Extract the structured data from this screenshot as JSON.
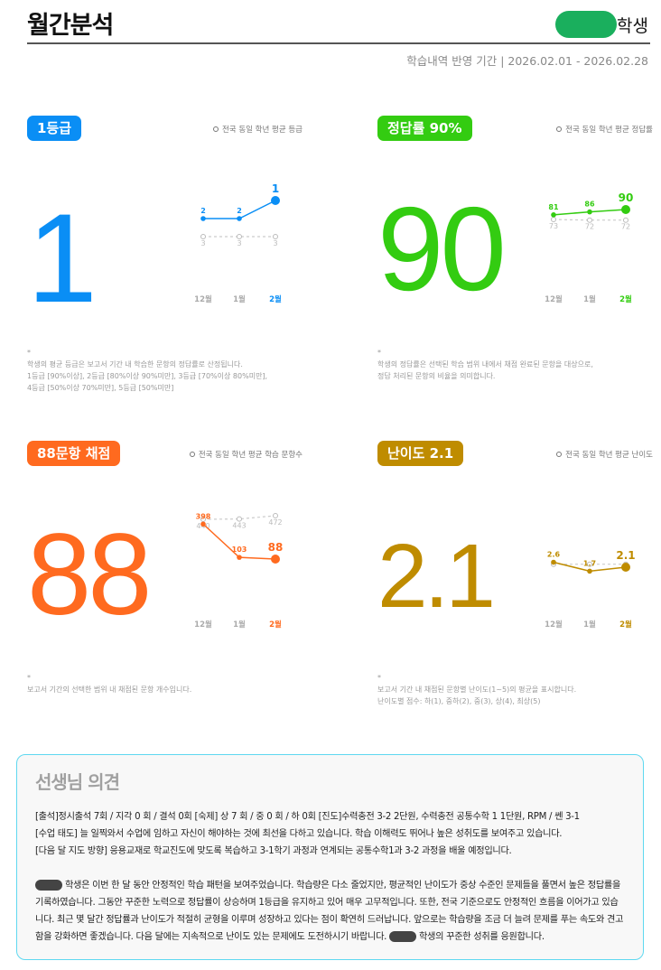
{
  "header": {
    "title": "월간분석",
    "student_suffix": "학생",
    "period_label": "학습내역 반영 기간  |  2026.02.01 - 2026.02.28"
  },
  "months": [
    "12월",
    "1월",
    "2월"
  ],
  "cards": [
    {
      "badge": "1등급",
      "color": "#0a8ef5",
      "big": "1",
      "legend": "전국 동일 학년 평균 등급",
      "student_values": [
        2,
        2,
        1
      ],
      "avg_values": [
        3,
        3,
        3
      ],
      "avg_labels": [
        "3",
        "3",
        "3"
      ],
      "student_labels": [
        "2",
        "2",
        "1"
      ],
      "note_lines": [
        "*",
        "학생의 평균 등급은 보고서 기간 내 학습한 문항의 정답률로 산정됩니다.",
        "1등급 [90%이상], 2등급 [80%이상 90%미만], 3등급 [70%이상 80%미만],",
        "4등급 [50%이상 70%미만], 5등급 [50%미만]"
      ]
    },
    {
      "badge": "정답률 90%",
      "color": "#33cc11",
      "big": "90",
      "legend": "전국 동일 학년 평균 정답률",
      "student_values": [
        81,
        86,
        90
      ],
      "avg_values": [
        73,
        72,
        72
      ],
      "avg_labels": [
        "73",
        "72",
        "72"
      ],
      "student_labels": [
        "81",
        "86",
        "90"
      ],
      "note_lines": [
        "*",
        "학생의 정답률은 선택된 학습 범위 내에서 채점 완료된 문항을 대상으로,",
        "정답 처리된 문항의 비율을 의미합니다."
      ]
    },
    {
      "badge": "88문항 채점",
      "color": "#ff6a1f",
      "big": "88",
      "legend": "전국 동일 학년 평균 학습 문항수",
      "student_values": [
        398,
        103,
        88
      ],
      "avg_values": [
        440,
        443,
        472
      ],
      "avg_labels": [
        "440",
        "443",
        "472"
      ],
      "student_labels": [
        "398",
        "103",
        "88"
      ],
      "note_lines": [
        "*",
        "보고서 기간의 선택한 범위 내 채점된 문항 개수입니다."
      ]
    },
    {
      "badge": "난이도 2.1",
      "color": "#bf8c00",
      "big": "2.1",
      "legend": "전국 동일 학년 평균 난이도",
      "student_values": [
        2.6,
        1.7,
        2.1
      ],
      "avg_values": [
        2.4,
        2.4,
        2.4
      ],
      "avg_labels": [
        "",
        "",
        ""
      ],
      "student_labels": [
        "2.6",
        "1.7",
        "2.1"
      ],
      "note_lines": [
        "*",
        "보고서 기간 내 채점된 문항별 난이도(1~5)의 평균을 표시합니다.",
        "난이도별 점수: 하(1), 중하(2), 중(3), 상(4), 최상(5)"
      ]
    }
  ],
  "teacher": {
    "title": "선생님 의견",
    "line1": "[출석]정시출석 7회 / 지각 0 회 / 결석 0회   [숙제] 상 7 회 / 중 0 회 / 하 0회  [진도]수력충전 3-2 2단원, 수력충전 공통수학 1 1단원, RPM / 쎈 3-1",
    "line2": "[수업 태도] 늘 일찍와서 수업에 임하고 자신이 해야하는 것에 최선을 다하고 있습니다.  학습 이해력도 뛰어나 높은 성취도를 보여주고 있습니다.",
    "line3": "[다음 달 지도 방향] 응용교재로 학교진도에 맞도록 복습하고 3-1학기 과정과 연계되는 공통수학1과 3-2 과정을 배울 예정입니다.",
    "para_a": " 학생은 이번 한 달 동안 안정적인 학습 패턴을 보여주었습니다. 학습량은 다소 줄었지만, 평균적인 난이도가 중상 수준인 문제들을 풀면서 높은 정답률을 기록하였습니다. 그동안 꾸준한 노력으로 정답률이 상승하며 1등급을 유지하고 있어 매우 고무적입니다. 또한, 전국 기준으로도 안정적인 흐름을 이어가고 있습니다. 최근 몇 달간 정답률과 난이도가 적절히 균형을 이루며 성장하고 있다는 점이 확연히 드러납니다. 앞으로는 학습량을 조금 더 늘려 문제를 푸는 속도와 견고함을 강화하면 좋겠습니다. 다음 달에는 지속적으로 난이도 있는 문제에도 도전하시기 바랍니다.",
    "para_b": " 학생의 꾸준한 성취를 응원합니다."
  }
}
